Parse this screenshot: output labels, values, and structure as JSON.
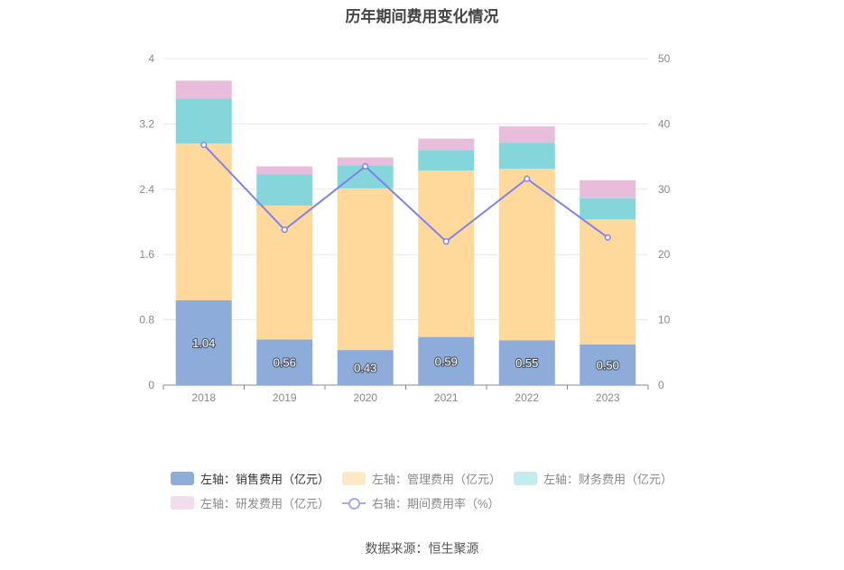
{
  "title": "历年期间费用变化情况",
  "source": "数据来源：恒生聚源",
  "chart_data": {
    "type": "bar",
    "stacked": true,
    "categories": [
      "2018",
      "2019",
      "2020",
      "2021",
      "2022",
      "2023"
    ],
    "y_left": {
      "ticks": [
        "0",
        "0.8",
        "1.6",
        "2.4",
        "3.2",
        "4"
      ],
      "ylim": [
        0,
        4
      ]
    },
    "y_right": {
      "ticks": [
        "0",
        "10",
        "20",
        "30",
        "40",
        "50"
      ],
      "ylim": [
        0,
        50
      ]
    },
    "series": [
      {
        "name": "左轴：销售费用（亿元）",
        "axis": "left",
        "color": "#8eacd9",
        "values": [
          1.04,
          0.56,
          0.43,
          0.59,
          0.55,
          0.5
        ],
        "labels": [
          "1.04",
          "0.56",
          "0.43",
          "0.59",
          "0.55",
          "0.50"
        ]
      },
      {
        "name": "左轴：管理费用（亿元）",
        "axis": "left",
        "color": "#fed99b",
        "values": [
          1.92,
          1.64,
          1.98,
          2.04,
          2.1,
          1.53
        ]
      },
      {
        "name": "左轴：财务费用（亿元）",
        "axis": "left",
        "color": "#85d6da",
        "values": [
          0.55,
          0.38,
          0.28,
          0.25,
          0.32,
          0.26
        ]
      },
      {
        "name": "左轴：研发费用（亿元）",
        "axis": "left",
        "color": "#e8bddc",
        "values": [
          0.22,
          0.1,
          0.1,
          0.14,
          0.2,
          0.22
        ]
      },
      {
        "name": "右轴：期间费用率（%）",
        "axis": "right",
        "type": "line",
        "color": "#7f82ee",
        "values": [
          36.8,
          23.8,
          33.5,
          22.0,
          31.6,
          22.6
        ]
      }
    ],
    "grid": true,
    "legend_position": "bottom"
  }
}
